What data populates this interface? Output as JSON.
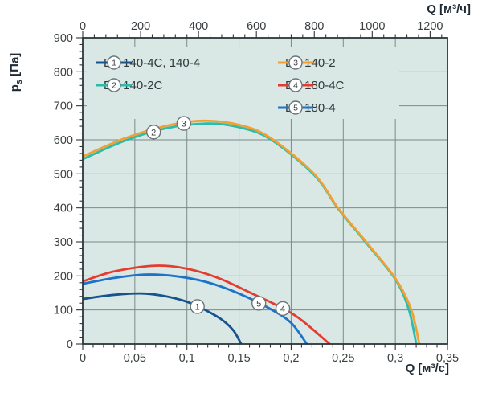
{
  "chart_data": {
    "type": "line",
    "title": "",
    "grid": true,
    "colors": {
      "page_bg": "#FFFFFF",
      "plot_bg": "#D9E8E5",
      "grid": "#7C8A88",
      "frame": "#2D3538",
      "tick_text": "#3A4043",
      "axis_title_text": "#1F2A33",
      "legend_text": "#33393B",
      "marker_fill": "#FFFFFF",
      "marker_stroke": "#6B7578"
    },
    "y_axis": {
      "label_base": "p",
      "label_sub": "s",
      "label_units": "[Па]",
      "min": 0,
      "max": 900,
      "major_step": 100,
      "minor_step": 20,
      "tick_labels": [
        "0",
        "100",
        "200",
        "300",
        "400",
        "500",
        "600",
        "700",
        "800",
        "900"
      ]
    },
    "x_bottom": {
      "label": "Q [м³/с]",
      "min": 0,
      "max": 0.35,
      "major_step": 0.05,
      "minor_step": 0.01,
      "tick_labels": [
        "0",
        "0,05",
        "0,1",
        "0,15",
        "0,2",
        "0,25",
        "0,3",
        "0,35"
      ]
    },
    "x_top": {
      "label": "Q [м³/ч]",
      "min": 0,
      "max": 1260,
      "major_step": 200,
      "minor_step": 40,
      "tick_labels": [
        "0",
        "200",
        "400",
        "600",
        "800",
        "1000",
        "1200"
      ]
    },
    "series": [
      {
        "id": "1",
        "name": "EX 140-4C, 140-4",
        "color": "#17548E",
        "marker_q": 0.11,
        "points": [
          [
            0,
            132
          ],
          [
            0.02,
            141
          ],
          [
            0.04,
            147
          ],
          [
            0.06,
            148
          ],
          [
            0.08,
            140
          ],
          [
            0.1,
            124
          ],
          [
            0.12,
            96
          ],
          [
            0.135,
            68
          ],
          [
            0.145,
            38
          ],
          [
            0.152,
            0
          ]
        ]
      },
      {
        "id": "2",
        "name": "EX 140-2C",
        "color": "#2BBCAC",
        "marker_q": 0.068,
        "points": [
          [
            0,
            543
          ],
          [
            0.04,
            597
          ],
          [
            0.08,
            634
          ],
          [
            0.12,
            648
          ],
          [
            0.15,
            637
          ],
          [
            0.18,
            602
          ],
          [
            0.222,
            497
          ],
          [
            0.245,
            398
          ],
          [
            0.272,
            297
          ],
          [
            0.3,
            190
          ],
          [
            0.313,
            100
          ],
          [
            0.32,
            0
          ]
        ]
      },
      {
        "id": "3",
        "name": "EX 140-2",
        "color": "#F2A032",
        "marker_q": 0.097,
        "points": [
          [
            0,
            551
          ],
          [
            0.04,
            604
          ],
          [
            0.08,
            641
          ],
          [
            0.115,
            656
          ],
          [
            0.15,
            644
          ],
          [
            0.18,
            606
          ],
          [
            0.222,
            500
          ],
          [
            0.245,
            400
          ],
          [
            0.272,
            300
          ],
          [
            0.3,
            193
          ],
          [
            0.315,
            103
          ],
          [
            0.323,
            0
          ]
        ]
      },
      {
        "id": "4",
        "name": "EX 180-4C",
        "color": "#E63C30",
        "marker_q": 0.192,
        "points": [
          [
            0,
            184
          ],
          [
            0.03,
            213
          ],
          [
            0.07,
            230
          ],
          [
            0.1,
            221
          ],
          [
            0.13,
            194
          ],
          [
            0.16,
            152
          ],
          [
            0.19,
            108
          ],
          [
            0.21,
            70
          ],
          [
            0.237,
            0
          ]
        ]
      },
      {
        "id": "5",
        "name": "EX 180-4",
        "color": "#1D72C9",
        "marker_q": 0.169,
        "points": [
          [
            0,
            177
          ],
          [
            0.03,
            194
          ],
          [
            0.06,
            204
          ],
          [
            0.09,
            199
          ],
          [
            0.12,
            181
          ],
          [
            0.15,
            148
          ],
          [
            0.18,
            103
          ],
          [
            0.2,
            62
          ],
          [
            0.215,
            0
          ]
        ]
      }
    ],
    "draw_order": [
      "1",
      "5",
      "4",
      "2",
      "3"
    ],
    "legend": {
      "items": [
        {
          "num": "1",
          "label": "EX 140-4C, 140-4",
          "color": "#17548E",
          "col": 0,
          "row": 0
        },
        {
          "num": "2",
          "label": "EX 140-2C",
          "color": "#2BBCAC",
          "col": 0,
          "row": 1
        },
        {
          "num": "3",
          "label": "EX 140-2",
          "color": "#F2A032",
          "col": 1,
          "row": 0
        },
        {
          "num": "4",
          "label": "EX 180-4C",
          "color": "#E63C30",
          "col": 1,
          "row": 1
        },
        {
          "num": "5",
          "label": "EX 180-4",
          "color": "#1D72C9",
          "col": 1,
          "row": 2
        }
      ]
    }
  }
}
